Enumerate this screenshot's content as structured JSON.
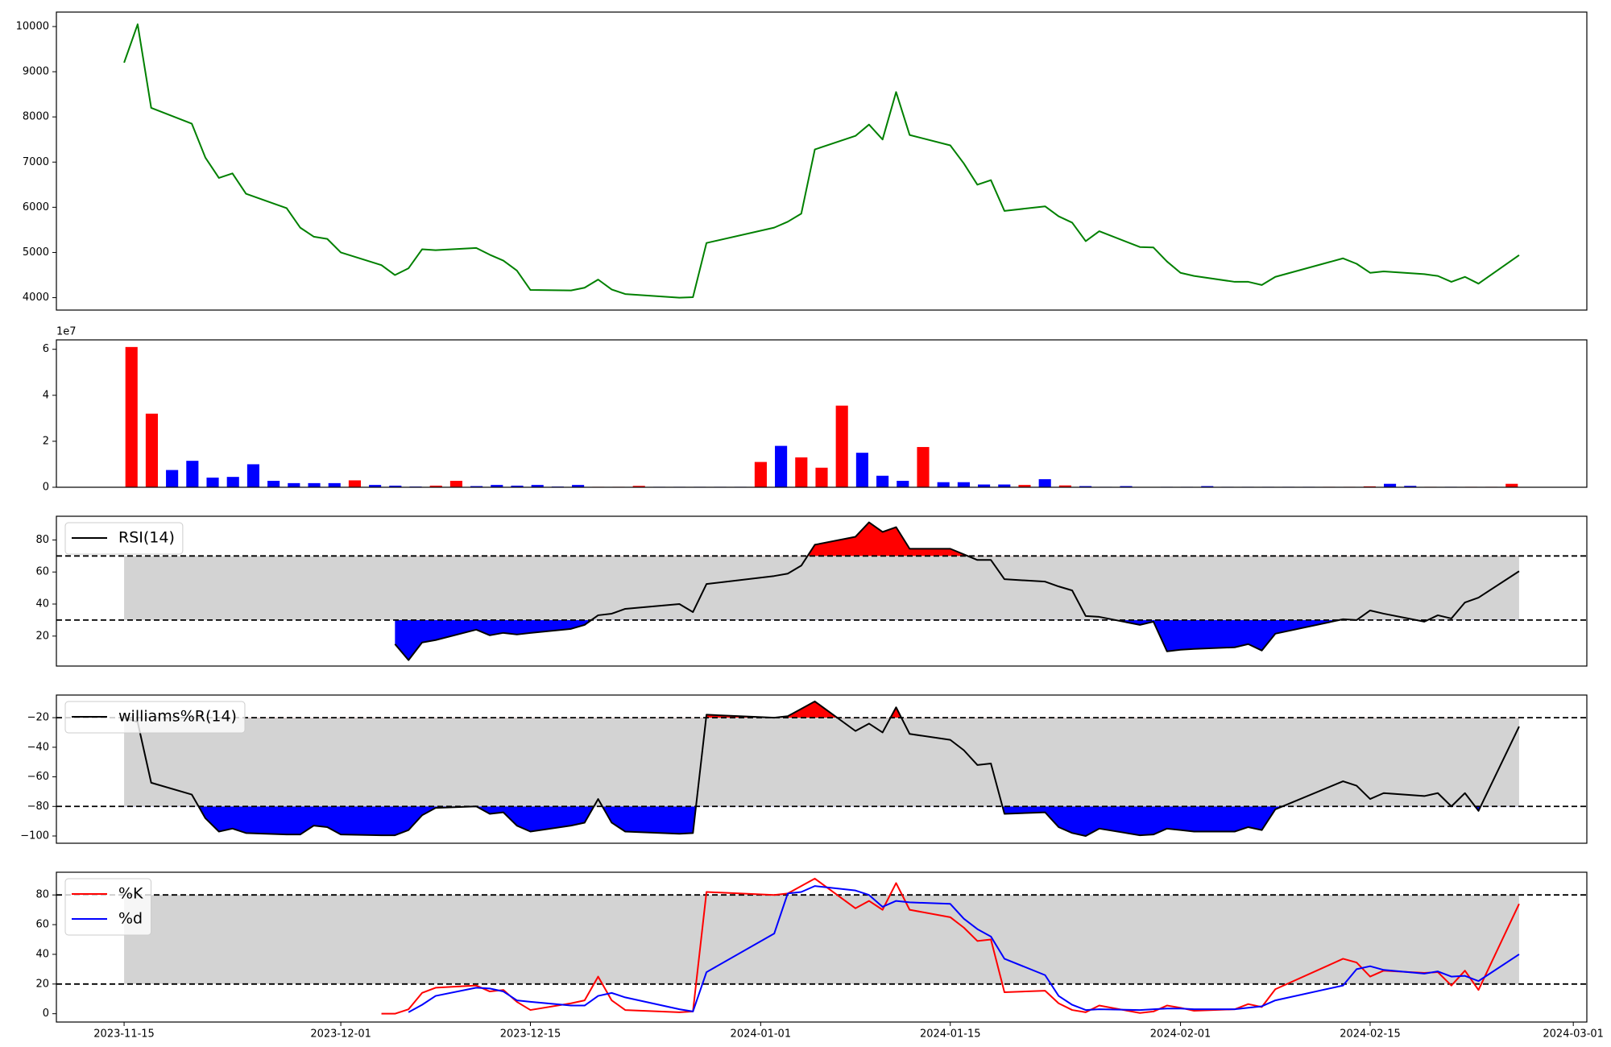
{
  "chart_data": [
    {
      "type": "line",
      "x": [
        "2023-11-15",
        "2023-11-16",
        "2023-11-17",
        "2023-11-20",
        "2023-11-21",
        "2023-11-22",
        "2023-11-23",
        "2023-11-24",
        "2023-11-27",
        "2023-11-28",
        "2023-11-29",
        "2023-11-30",
        "2023-12-01",
        "2023-12-04",
        "2023-12-05",
        "2023-12-06",
        "2023-12-07",
        "2023-12-08",
        "2023-12-11",
        "2023-12-12",
        "2023-12-13",
        "2023-12-14",
        "2023-12-15",
        "2023-12-18",
        "2023-12-19",
        "2023-12-20",
        "2023-12-21",
        "2023-12-22",
        "2023-12-26",
        "2023-12-27",
        "2023-12-28",
        "2024-01-02",
        "2024-01-03",
        "2024-01-04",
        "2024-01-05",
        "2024-01-08",
        "2024-01-09",
        "2024-01-10",
        "2024-01-11",
        "2024-01-12",
        "2024-01-15",
        "2024-01-16",
        "2024-01-17",
        "2024-01-18",
        "2024-01-19",
        "2024-01-22",
        "2024-01-23",
        "2024-01-24",
        "2024-01-25",
        "2024-01-26",
        "2024-01-29",
        "2024-01-30",
        "2024-01-31",
        "2024-02-01",
        "2024-02-02",
        "2024-02-05",
        "2024-02-06",
        "2024-02-07",
        "2024-02-08",
        "2024-02-13",
        "2024-02-14",
        "2024-02-15",
        "2024-02-16",
        "2024-02-19",
        "2024-02-20",
        "2024-02-21",
        "2024-02-22",
        "2024-02-23",
        "2024-02-26"
      ],
      "xlim": [
        "2023-11-10",
        "2024-03-02"
      ],
      "series": [
        {
          "color": "green",
          "values": [
            9200,
            10050,
            8200,
            7850,
            7100,
            6650,
            6750,
            6300,
            5980,
            5550,
            5350,
            5300,
            5000,
            4720,
            4500,
            4650,
            5070,
            5050,
            5100,
            4950,
            4820,
            4600,
            4170,
            4160,
            4220,
            4400,
            4180,
            4080,
            4000,
            4010,
            5210,
            5550,
            5680,
            5860,
            7280,
            7580,
            7830,
            7500,
            8550,
            7600,
            7370,
            6970,
            6500,
            6600,
            5920,
            6020,
            5800,
            5660,
            5250,
            5470,
            5120,
            5110,
            4800,
            4550,
            4480,
            4350,
            4350,
            4280,
            4460,
            4870,
            4750,
            4550,
            4580,
            4520,
            4480,
            4350,
            4460,
            4310,
            4940
          ]
        }
      ],
      "ylim": [
        3725,
        10320
      ],
      "yticks": [
        4000,
        5000,
        6000,
        7000,
        8000,
        9000,
        10000
      ]
    },
    {
      "type": "bar",
      "values": [
        6.1,
        3.2,
        0.75,
        1.15,
        0.42,
        0.45,
        1.0,
        0.28,
        0.18,
        0.18,
        0.18,
        0.3,
        0.1,
        0.07,
        0.03,
        0.07,
        0.28,
        0.05,
        0.1,
        0.07,
        0.1,
        0.03,
        0.1,
        0.02,
        0.02,
        0.06,
        0.02,
        0.02,
        0.02,
        0.02,
        0.02,
        1.1,
        1.8,
        1.3,
        0.85,
        3.55,
        1.5,
        0.5,
        0.28,
        1.75,
        0.22,
        0.22,
        0.12,
        0.12,
        0.1,
        0.35,
        0.08,
        0.05,
        0.02,
        0.05,
        0.01,
        0.02,
        0.02,
        0.05,
        0.02,
        0.02,
        0.02,
        0.02,
        0.02,
        0.02,
        0.02,
        0.04,
        0.15,
        0.06,
        0.02,
        0.02,
        0.02,
        0.02,
        0.15
      ],
      "colors": [
        "red",
        "red",
        "blue",
        "blue",
        "blue",
        "blue",
        "blue",
        "blue",
        "blue",
        "blue",
        "blue",
        "red",
        "blue",
        "blue",
        "blue",
        "red",
        "red",
        "blue",
        "blue",
        "blue",
        "blue",
        "blue",
        "blue",
        "red",
        "red",
        "red",
        "blue",
        "blue",
        "blue",
        "blue",
        "blue",
        "red",
        "blue",
        "red",
        "red",
        "red",
        "blue",
        "blue",
        "blue",
        "red",
        "blue",
        "blue",
        "blue",
        "blue",
        "red",
        "blue",
        "red",
        "blue",
        "blue",
        "blue",
        "red",
        "blue",
        "blue",
        "blue",
        "blue",
        "blue",
        "blue",
        "blue",
        "blue",
        "red",
        "red",
        "red",
        "blue",
        "blue",
        "red",
        "blue",
        "red",
        "red",
        "red"
      ],
      "ylim": [
        0,
        6.41
      ],
      "yticks": [
        0,
        2,
        4,
        6
      ],
      "offset_label": "1e7"
    },
    {
      "type": "line",
      "x": [
        "2023-11-15",
        "2023-11-16",
        "2023-11-17",
        "2023-11-20",
        "2023-11-21",
        "2023-11-22",
        "2023-11-23",
        "2023-11-24",
        "2023-11-27",
        "2023-11-28",
        "2023-11-29",
        "2023-11-30",
        "2023-12-01",
        "2023-12-04",
        "2023-12-05",
        "2023-12-06",
        "2023-12-07",
        "2023-12-08",
        "2023-12-11",
        "2023-12-12",
        "2023-12-13",
        "2023-12-14",
        "2023-12-15",
        "2023-12-18",
        "2023-12-19",
        "2023-12-20",
        "2023-12-21",
        "2023-12-22",
        "2023-12-26",
        "2023-12-27",
        "2023-12-28",
        "2024-01-02",
        "2024-01-03",
        "2024-01-04",
        "2024-01-05",
        "2024-01-08",
        "2024-01-09",
        "2024-01-10",
        "2024-01-11",
        "2024-01-12",
        "2024-01-15",
        "2024-01-16",
        "2024-01-17",
        "2024-01-18",
        "2024-01-19",
        "2024-01-22",
        "2024-01-23",
        "2024-01-24",
        "2024-01-25",
        "2024-01-26",
        "2024-01-29",
        "2024-01-30",
        "2024-01-31",
        "2024-02-01",
        "2024-02-02",
        "2024-02-05",
        "2024-02-06",
        "2024-02-07",
        "2024-02-08",
        "2024-02-13",
        "2024-02-14",
        "2024-02-15",
        "2024-02-16",
        "2024-02-19",
        "2024-02-20",
        "2024-02-21",
        "2024-02-22",
        "2024-02-23",
        "2024-02-26"
      ],
      "xlim": [
        "2023-11-10",
        "2024-03-02"
      ],
      "series": [
        {
          "name": "RSI(14)",
          "color": "black",
          "values": [
            null,
            null,
            null,
            null,
            null,
            null,
            null,
            null,
            null,
            null,
            null,
            null,
            null,
            null,
            15,
            5,
            16,
            17.5,
            24,
            20.5,
            22,
            21,
            22,
            24.5,
            27,
            33,
            34,
            37,
            40,
            35,
            52.5,
            57.5,
            59,
            64,
            77,
            82,
            91,
            85,
            88,
            74.5,
            74.5,
            71,
            67.5,
            67.5,
            55.5,
            54,
            51,
            48.5,
            32.5,
            32,
            27,
            29,
            10.5,
            11.5,
            12,
            13,
            15,
            11,
            21.5,
            30.5,
            30,
            36,
            34,
            29,
            33,
            31,
            41,
            44,
            60.5
          ]
        }
      ],
      "ylim": [
        1.3,
        94.8
      ],
      "yticks": [
        20,
        40,
        60,
        80
      ],
      "thresholds": [
        30,
        70
      ],
      "band_color": "lightgray",
      "fill_colors": [
        "blue",
        "red"
      ],
      "legend": "upper left"
    },
    {
      "type": "line",
      "x": [
        "2023-11-15",
        "2023-11-16",
        "2023-11-17",
        "2023-11-20",
        "2023-11-21",
        "2023-11-22",
        "2023-11-23",
        "2023-11-24",
        "2023-11-27",
        "2023-11-28",
        "2023-11-29",
        "2023-11-30",
        "2023-12-01",
        "2023-12-04",
        "2023-12-05",
        "2023-12-06",
        "2023-12-07",
        "2023-12-08",
        "2023-12-11",
        "2023-12-12",
        "2023-12-13",
        "2023-12-14",
        "2023-12-15",
        "2023-12-18",
        "2023-12-19",
        "2023-12-20",
        "2023-12-21",
        "2023-12-22",
        "2023-12-26",
        "2023-12-27",
        "2023-12-28",
        "2024-01-02",
        "2024-01-03",
        "2024-01-04",
        "2024-01-05",
        "2024-01-08",
        "2024-01-09",
        "2024-01-10",
        "2024-01-11",
        "2024-01-12",
        "2024-01-15",
        "2024-01-16",
        "2024-01-17",
        "2024-01-18",
        "2024-01-19",
        "2024-01-22",
        "2024-01-23",
        "2024-01-24",
        "2024-01-25",
        "2024-01-26",
        "2024-01-29",
        "2024-01-30",
        "2024-01-31",
        "2024-02-01",
        "2024-02-02",
        "2024-02-05",
        "2024-02-06",
        "2024-02-07",
        "2024-02-08",
        "2024-02-13",
        "2024-02-14",
        "2024-02-15",
        "2024-02-16",
        "2024-02-19",
        "2024-02-20",
        "2024-02-21",
        "2024-02-22",
        "2024-02-23",
        "2024-02-26"
      ],
      "xlim": [
        "2023-11-10",
        "2024-03-02"
      ],
      "series": [
        {
          "name": "williams%R(14)",
          "color": "black",
          "values": [
            -20,
            -23,
            -64,
            -72,
            -88,
            -97,
            -95,
            -98,
            -99,
            -99,
            -93,
            -94,
            -99,
            -99.5,
            -99.5,
            -96,
            -86,
            -81,
            -80,
            -85,
            -84,
            -93,
            -97,
            -93,
            -91,
            -75,
            -91,
            -97,
            -98.5,
            -98,
            -18,
            -20,
            -19,
            -14,
            -9,
            -29,
            -24,
            -30,
            -13,
            -31,
            -35,
            -42,
            -52,
            -51,
            -85,
            -84,
            -94,
            -98,
            -100,
            -95,
            -99.5,
            -99,
            -95,
            -96,
            -97,
            -97,
            -94,
            -96,
            -82,
            -63,
            -66,
            -75,
            -71,
            -73,
            -71,
            -80,
            -71,
            -83,
            -26
          ]
        }
      ],
      "ylim": [
        -104.9,
        -4.7
      ],
      "yticks": [
        {
          "value": -100,
          "label": "−100"
        },
        {
          "value": -80,
          "label": "−80"
        },
        {
          "value": -60,
          "label": "−60"
        },
        {
          "value": -40,
          "label": "−40"
        },
        {
          "value": -20,
          "label": "−20"
        }
      ],
      "thresholds": [
        -80,
        -20
      ],
      "band_color": "lightgray",
      "fill_colors": [
        "blue",
        "red"
      ],
      "legend": "upper left"
    },
    {
      "type": "line",
      "x": [
        "2023-11-15",
        "2023-11-16",
        "2023-11-17",
        "2023-11-20",
        "2023-11-21",
        "2023-11-22",
        "2023-11-23",
        "2023-11-24",
        "2023-11-27",
        "2023-11-28",
        "2023-11-29",
        "2023-11-30",
        "2023-12-01",
        "2023-12-04",
        "2023-12-05",
        "2023-12-06",
        "2023-12-07",
        "2023-12-08",
        "2023-12-11",
        "2023-12-12",
        "2023-12-13",
        "2023-12-14",
        "2023-12-15",
        "2023-12-18",
        "2023-12-19",
        "2023-12-20",
        "2023-12-21",
        "2023-12-22",
        "2023-12-26",
        "2023-12-27",
        "2023-12-28",
        "2024-01-02",
        "2024-01-03",
        "2024-01-04",
        "2024-01-05",
        "2024-01-08",
        "2024-01-09",
        "2024-01-10",
        "2024-01-11",
        "2024-01-12",
        "2024-01-15",
        "2024-01-16",
        "2024-01-17",
        "2024-01-18",
        "2024-01-19",
        "2024-01-22",
        "2024-01-23",
        "2024-01-24",
        "2024-01-25",
        "2024-01-26",
        "2024-01-29",
        "2024-01-30",
        "2024-01-31",
        "2024-02-01",
        "2024-02-02",
        "2024-02-05",
        "2024-02-06",
        "2024-02-07",
        "2024-02-08",
        "2024-02-13",
        "2024-02-14",
        "2024-02-15",
        "2024-02-16",
        "2024-02-19",
        "2024-02-20",
        "2024-02-21",
        "2024-02-22",
        "2024-02-23",
        "2024-02-26"
      ],
      "xlim": [
        "2023-11-10",
        "2024-03-02"
      ],
      "xticks": [
        "2023-11-15",
        "2023-12-01",
        "2023-12-15",
        "2024-01-01",
        "2024-01-15",
        "2024-02-01",
        "2024-02-15",
        "2024-03-01"
      ],
      "series": [
        {
          "name": "%K",
          "color": "red",
          "values": [
            null,
            null,
            null,
            null,
            null,
            null,
            null,
            null,
            null,
            null,
            null,
            null,
            null,
            0,
            0,
            3,
            14,
            17.5,
            19,
            15,
            16,
            8,
            2.5,
            7,
            9,
            25,
            9,
            2.5,
            1,
            1.5,
            82,
            80,
            81,
            86,
            91,
            71,
            76,
            70,
            88,
            70,
            65,
            58,
            49,
            50,
            14.5,
            15.5,
            7,
            2.5,
            1,
            5.5,
            0.5,
            1.5,
            5.5,
            4,
            2,
            3,
            6.5,
            4.5,
            16.5,
            37,
            34.5,
            25,
            29,
            27.5,
            28,
            19,
            29,
            16,
            74
          ]
        },
        {
          "name": "%d",
          "color": "blue",
          "values": [
            null,
            null,
            null,
            null,
            null,
            null,
            null,
            null,
            null,
            null,
            null,
            null,
            null,
            null,
            null,
            1,
            6,
            12,
            17.5,
            17,
            15,
            9,
            8,
            5.5,
            5.5,
            12,
            14,
            11,
            3,
            1.5,
            28,
            54,
            81,
            82,
            86,
            83,
            80,
            72,
            76,
            75,
            74,
            64,
            57,
            52,
            37,
            26,
            12,
            6,
            2.5,
            3,
            2.5,
            3,
            3.5,
            3.5,
            3,
            3,
            4,
            5,
            9,
            19,
            30,
            32,
            29.5,
            27,
            28.5,
            25,
            25.5,
            22,
            40
          ]
        }
      ],
      "ylim": [
        -5.6,
        95.3
      ],
      "yticks": [
        0,
        20,
        40,
        60,
        80
      ],
      "thresholds": [
        20,
        80
      ],
      "band_color": "lightgray",
      "legend": "upper left"
    }
  ]
}
